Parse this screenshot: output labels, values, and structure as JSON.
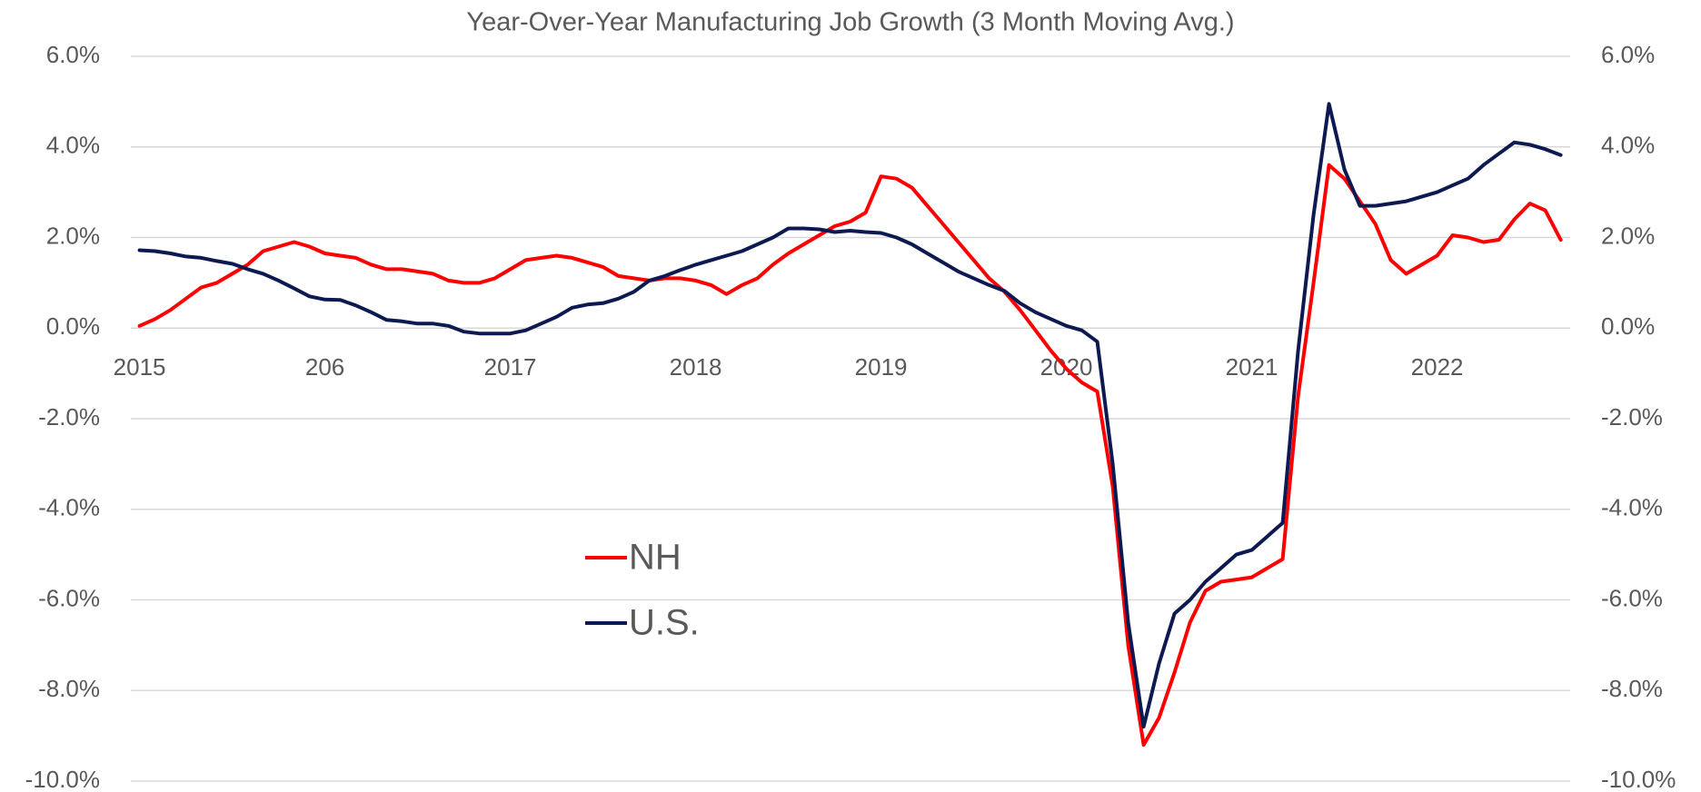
{
  "chart_data": {
    "type": "line",
    "title": "Year-Over-Year Manufacturing Job Growth (3 Month Moving Avg.)",
    "categories": [
      "2015",
      null,
      null,
      null,
      null,
      null,
      null,
      null,
      null,
      null,
      null,
      null,
      "206",
      null,
      null,
      null,
      null,
      null,
      null,
      null,
      null,
      null,
      null,
      null,
      "2017",
      null,
      null,
      null,
      null,
      null,
      null,
      null,
      null,
      null,
      null,
      null,
      "2018",
      null,
      null,
      null,
      null,
      null,
      null,
      null,
      null,
      null,
      null,
      null,
      "2019",
      null,
      null,
      null,
      null,
      null,
      null,
      null,
      null,
      null,
      null,
      null,
      "2020",
      null,
      null,
      null,
      null,
      null,
      null,
      null,
      null,
      null,
      null,
      null,
      "2021",
      null,
      null,
      null,
      null,
      null,
      null,
      null,
      null,
      null,
      null,
      null,
      "2022",
      null,
      null,
      null,
      null,
      null,
      null,
      null,
      null
    ],
    "series": [
      {
        "name": "NH",
        "color": "#ff0000",
        "values": [
          0.05,
          0.2,
          0.4,
          0.65,
          0.9,
          1.0,
          1.2,
          1.4,
          1.7,
          1.8,
          1.9,
          1.8,
          1.65,
          1.6,
          1.55,
          1.4,
          1.3,
          1.3,
          1.25,
          1.2,
          1.05,
          1.0,
          1.0,
          1.1,
          1.3,
          1.5,
          1.55,
          1.6,
          1.55,
          1.45,
          1.35,
          1.15,
          1.1,
          1.05,
          1.1,
          1.1,
          1.05,
          0.95,
          0.75,
          0.95,
          1.1,
          1.4,
          1.65,
          1.85,
          2.05,
          2.25,
          2.35,
          2.55,
          3.35,
          3.3,
          3.1,
          2.7,
          2.3,
          1.9,
          1.5,
          1.1,
          0.8,
          0.4,
          -0.05,
          -0.5,
          -0.9,
          -1.2,
          -1.4,
          -3.5,
          -7.0,
          -9.2,
          -8.6,
          -7.6,
          -6.5,
          -5.8,
          -5.6,
          -5.55,
          -5.5,
          -5.3,
          -5.1,
          -1.5,
          1.0,
          3.6,
          3.3,
          2.8,
          2.3,
          1.5,
          1.2,
          1.4,
          1.6,
          2.05,
          2.0,
          1.9,
          1.95,
          2.4,
          2.75,
          2.6,
          1.95
        ]
      },
      {
        "name": "U.S.",
        "color": "#0d1a52",
        "values": [
          1.72,
          1.7,
          1.65,
          1.58,
          1.55,
          1.48,
          1.42,
          1.3,
          1.2,
          1.05,
          0.88,
          0.7,
          0.63,
          0.62,
          0.5,
          0.35,
          0.18,
          0.15,
          0.1,
          0.1,
          0.05,
          -0.08,
          -0.12,
          -0.12,
          -0.12,
          -0.05,
          0.1,
          0.25,
          0.45,
          0.52,
          0.55,
          0.65,
          0.8,
          1.05,
          1.15,
          1.28,
          1.4,
          1.5,
          1.6,
          1.7,
          1.85,
          2.0,
          2.2,
          2.2,
          2.18,
          2.12,
          2.15,
          2.12,
          2.1,
          2.0,
          1.85,
          1.65,
          1.45,
          1.25,
          1.1,
          0.95,
          0.82,
          0.55,
          0.35,
          0.2,
          0.05,
          -0.05,
          -0.3,
          -3.0,
          -6.5,
          -8.8,
          -7.4,
          -6.3,
          -6.0,
          -5.6,
          -5.3,
          -5.0,
          -4.9,
          -4.6,
          -4.3,
          -0.5,
          2.5,
          4.95,
          3.5,
          2.7,
          2.7,
          2.75,
          2.8,
          2.9,
          3.0,
          3.15,
          3.3,
          3.6,
          3.85,
          4.1,
          4.05,
          3.95,
          3.82
        ]
      }
    ],
    "ylim": [
      -10,
      6
    ],
    "yticks": [
      {
        "value": -10,
        "label": "-10.0%"
      },
      {
        "value": -8,
        "label": "-8.0%"
      },
      {
        "value": -6,
        "label": "-6.0%"
      },
      {
        "value": -4,
        "label": "-4.0%"
      },
      {
        "value": -2,
        "label": "-2.0%"
      },
      {
        "value": 0,
        "label": "0.0%"
      },
      {
        "value": 2,
        "label": "2.0%"
      },
      {
        "value": 4,
        "label": "4.0%"
      },
      {
        "value": 6,
        "label": "6.0%"
      }
    ],
    "grid": true
  }
}
